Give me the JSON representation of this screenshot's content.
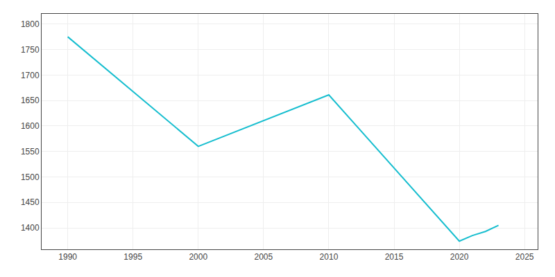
{
  "chart_data": {
    "type": "line",
    "x": [
      1990,
      2000,
      2010,
      2020,
      2021,
      2022,
      2023
    ],
    "values": [
      1775,
      1560,
      1661,
      1374,
      1385,
      1393,
      1405
    ],
    "color": "#17becf",
    "xlim": [
      1988,
      2026
    ],
    "ylim": [
      1358,
      1820
    ],
    "xticks": [
      1990,
      1995,
      2000,
      2005,
      2010,
      2015,
      2020,
      2025
    ],
    "yticks": [
      1400,
      1450,
      1500,
      1550,
      1600,
      1650,
      1700,
      1750,
      1800
    ],
    "grid": true
  }
}
